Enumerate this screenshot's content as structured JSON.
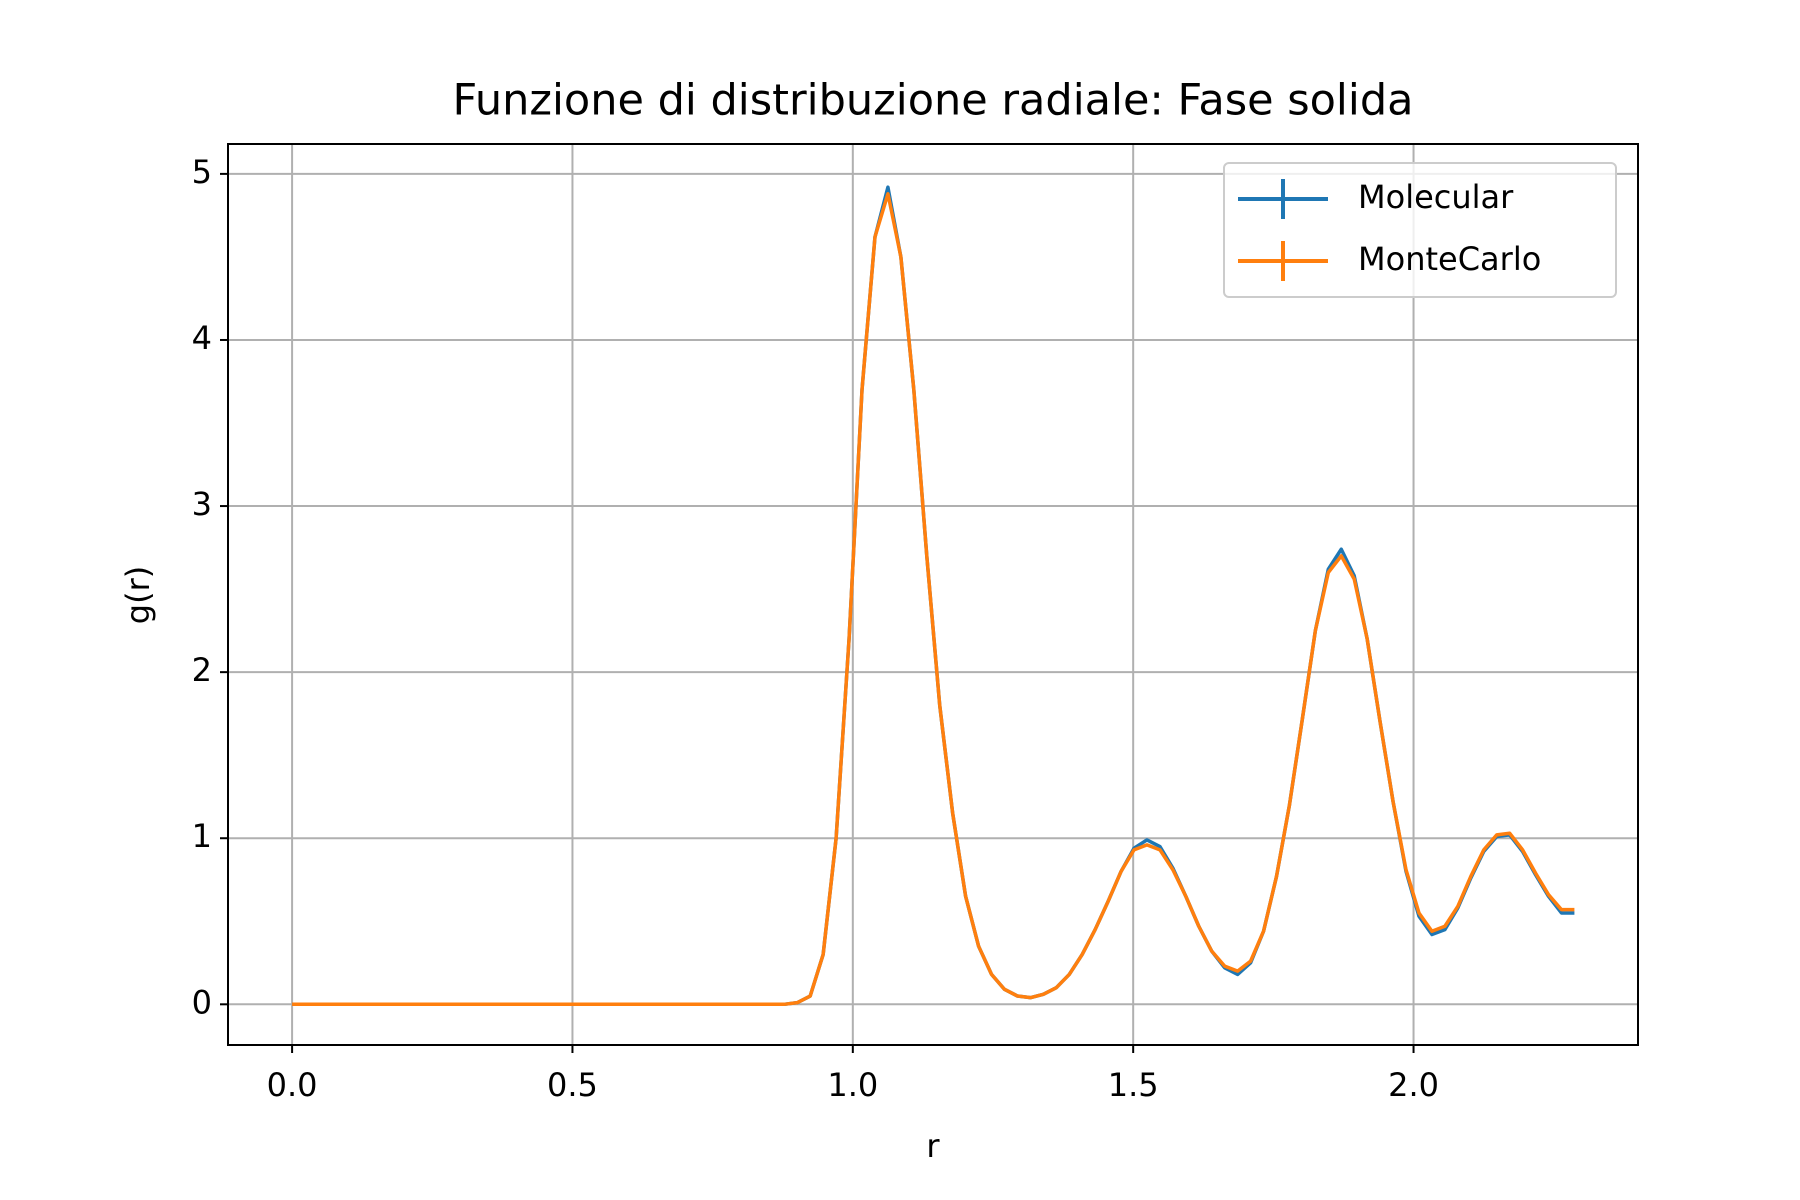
{
  "chart_data": {
    "type": "line",
    "title": "Funzione di distribuzione radiale: Fase solida",
    "xlabel": "r",
    "ylabel": "g(r)",
    "x": [
      0,
      0.0231,
      0.0462,
      0.0693,
      0.0924,
      0.1155,
      0.1386,
      0.1617,
      0.1848,
      0.2079,
      0.231,
      0.2541,
      0.2772,
      0.3003,
      0.3234,
      0.3465,
      0.3696,
      0.3927,
      0.4158,
      0.4389,
      0.462,
      0.4851,
      0.5082,
      0.5313,
      0.5544,
      0.5775,
      0.6006,
      0.6237,
      0.6468,
      0.6699,
      0.693,
      0.7161,
      0.7392,
      0.7623,
      0.7854,
      0.8085,
      0.8316,
      0.8547,
      0.8778,
      0.9009,
      0.924,
      0.9471,
      0.9702,
      0.9933,
      1.0164,
      1.0395,
      1.0626,
      1.0857,
      1.1088,
      1.1319,
      1.155,
      1.1781,
      1.2012,
      1.2243,
      1.2474,
      1.2705,
      1.2936,
      1.3167,
      1.3398,
      1.3629,
      1.386,
      1.4091,
      1.4322,
      1.4553,
      1.4784,
      1.5015,
      1.5246,
      1.5477,
      1.5708,
      1.5939,
      1.617,
      1.6401,
      1.6632,
      1.6863,
      1.7094,
      1.7325,
      1.7556,
      1.7787,
      1.8018,
      1.8249,
      1.848,
      1.8711,
      1.8942,
      1.9173,
      1.9404,
      1.9635,
      1.9866,
      2.0097,
      2.0328,
      2.0559,
      2.079,
      2.1021,
      2.1252,
      2.1483,
      2.1714,
      2.1945,
      2.2176,
      2.2407,
      2.2638,
      2.2869
    ],
    "series": [
      {
        "name": "Molecular",
        "color": "#1f77b4",
        "values": [
          0,
          0,
          0,
          0,
          0,
          0,
          0,
          0,
          0,
          0,
          0,
          0,
          0,
          0,
          0,
          0,
          0,
          0,
          0,
          0,
          0,
          0,
          0,
          0,
          0,
          0,
          0,
          0,
          0,
          0,
          0,
          0,
          0,
          0,
          0,
          0,
          0,
          0,
          0,
          0.01,
          0.05,
          0.3,
          1.0,
          2.2,
          3.7,
          4.62,
          4.92,
          4.5,
          3.7,
          2.7,
          1.8,
          1.15,
          0.65,
          0.35,
          0.18,
          0.09,
          0.05,
          0.04,
          0.06,
          0.1,
          0.18,
          0.3,
          0.45,
          0.62,
          0.8,
          0.94,
          0.99,
          0.95,
          0.82,
          0.65,
          0.47,
          0.32,
          0.22,
          0.18,
          0.25,
          0.44,
          0.77,
          1.2,
          1.72,
          2.25,
          2.62,
          2.74,
          2.58,
          2.2,
          1.7,
          1.22,
          0.8,
          0.53,
          0.42,
          0.45,
          0.58,
          0.76,
          0.92,
          1.01,
          1.02,
          0.92,
          0.78,
          0.65,
          0.55,
          0.55
        ]
      },
      {
        "name": "MonteCarlo",
        "color": "#ff7f0e",
        "values": [
          0,
          0,
          0,
          0,
          0,
          0,
          0,
          0,
          0,
          0,
          0,
          0,
          0,
          0,
          0,
          0,
          0,
          0,
          0,
          0,
          0,
          0,
          0,
          0,
          0,
          0,
          0,
          0,
          0,
          0,
          0,
          0,
          0,
          0,
          0,
          0,
          0,
          0,
          0,
          0.01,
          0.05,
          0.3,
          1.0,
          2.2,
          3.7,
          4.62,
          4.88,
          4.5,
          3.7,
          2.7,
          1.8,
          1.15,
          0.65,
          0.35,
          0.18,
          0.09,
          0.05,
          0.04,
          0.06,
          0.1,
          0.18,
          0.3,
          0.45,
          0.62,
          0.8,
          0.93,
          0.96,
          0.93,
          0.81,
          0.65,
          0.47,
          0.32,
          0.23,
          0.2,
          0.26,
          0.44,
          0.77,
          1.2,
          1.72,
          2.25,
          2.6,
          2.7,
          2.56,
          2.2,
          1.7,
          1.22,
          0.81,
          0.55,
          0.44,
          0.47,
          0.59,
          0.77,
          0.93,
          1.02,
          1.03,
          0.93,
          0.79,
          0.66,
          0.57,
          0.57
        ]
      }
    ],
    "xlim": [
      -0.1143,
      2.4003
    ],
    "ylim": [
      -0.245,
      5.18
    ],
    "xticks": [
      {
        "value": 0,
        "label": "0.0"
      },
      {
        "value": 0.5,
        "label": "0.5"
      },
      {
        "value": 1,
        "label": "1.0"
      },
      {
        "value": 1.5,
        "label": "1.5"
      },
      {
        "value": 2,
        "label": "2.0"
      }
    ],
    "yticks": [
      0,
      1,
      2,
      3,
      4,
      5
    ],
    "grid": true,
    "legend": "upper right"
  }
}
